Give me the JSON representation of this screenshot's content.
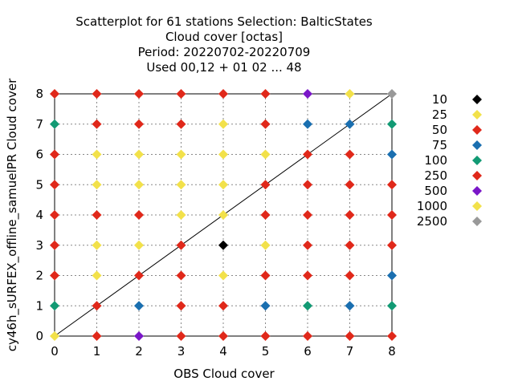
{
  "chart_data": {
    "type": "scatter",
    "title": [
      "Scatterplot for   61 stations Selection: BalticStates",
      "Cloud cover [octas]",
      "Period: 20220702-20220709",
      "Used  00,12  + 01 02 ... 48"
    ],
    "xlabel": "OBS Cloud cover",
    "ylabel": "cy46h_sURFEX_offline_samuelPR Cloud cover",
    "xlim": [
      0,
      8
    ],
    "ylim": [
      0,
      8
    ],
    "xticks": [
      "0",
      "1",
      "2",
      "3",
      "4",
      "5",
      "6",
      "7",
      "8"
    ],
    "yticks": [
      "0",
      "1",
      "2",
      "3",
      "4",
      "5",
      "6",
      "7",
      "8"
    ],
    "grid": true,
    "diagonal": true,
    "legend_position": "right",
    "legend": [
      {
        "label": "10",
        "color": "#000000"
      },
      {
        "label": "25",
        "color": "#f2e14a"
      },
      {
        "label": "50",
        "color": "#e0281a"
      },
      {
        "label": "75",
        "color": "#1a6fb0"
      },
      {
        "label": "100",
        "color": "#129a74"
      },
      {
        "label": "250",
        "color": "#e0281a"
      },
      {
        "label": "500",
        "color": "#7a16c8"
      },
      {
        "label": "1000",
        "color": "#f2e14a"
      },
      {
        "label": "2500",
        "color": "#999999"
      }
    ],
    "points": [
      {
        "y": 8,
        "colors": [
          "#e0281a",
          "#e0281a",
          "#e0281a",
          "#e0281a",
          "#e0281a",
          "#e0281a",
          "#7a16c8",
          "#f2e14a",
          "#999999"
        ]
      },
      {
        "y": 7,
        "colors": [
          "#129a74",
          "#e0281a",
          "#e0281a",
          "#e0281a",
          "#f2e14a",
          "#e0281a",
          "#1a6fb0",
          "#1a6fb0",
          "#129a74"
        ]
      },
      {
        "y": 6,
        "colors": [
          "#e0281a",
          "#f2e14a",
          "#f2e14a",
          "#f2e14a",
          "#f2e14a",
          "#f2e14a",
          "#e0281a",
          "#e0281a",
          "#1a6fb0"
        ]
      },
      {
        "y": 5,
        "colors": [
          "#e0281a",
          "#f2e14a",
          "#f2e14a",
          "#f2e14a",
          "#f2e14a",
          "#e0281a",
          "#e0281a",
          "#e0281a",
          "#e0281a"
        ]
      },
      {
        "y": 4,
        "colors": [
          "#e0281a",
          "#e0281a",
          "#e0281a",
          "#f2e14a",
          "#f2e14a",
          "#e0281a",
          "#e0281a",
          "#e0281a",
          "#e0281a"
        ]
      },
      {
        "y": 3,
        "colors": [
          "#e0281a",
          "#f2e14a",
          "#f2e14a",
          "#e0281a",
          "#000000",
          "#f2e14a",
          "#e0281a",
          "#e0281a",
          "#e0281a"
        ]
      },
      {
        "y": 2,
        "colors": [
          "#e0281a",
          "#f2e14a",
          "#e0281a",
          "#e0281a",
          "#f2e14a",
          "#e0281a",
          "#e0281a",
          "#e0281a",
          "#1a6fb0"
        ]
      },
      {
        "y": 1,
        "colors": [
          "#129a74",
          "#e0281a",
          "#1a6fb0",
          "#e0281a",
          "#e0281a",
          "#1a6fb0",
          "#129a74",
          "#1a6fb0",
          "#129a74"
        ]
      },
      {
        "y": 0,
        "colors": [
          "#f2e14a",
          "#e0281a",
          "#7a16c8",
          "#e0281a",
          "#e0281a",
          "#e0281a",
          "#e0281a",
          "#e0281a",
          "#e0281a"
        ]
      }
    ]
  }
}
